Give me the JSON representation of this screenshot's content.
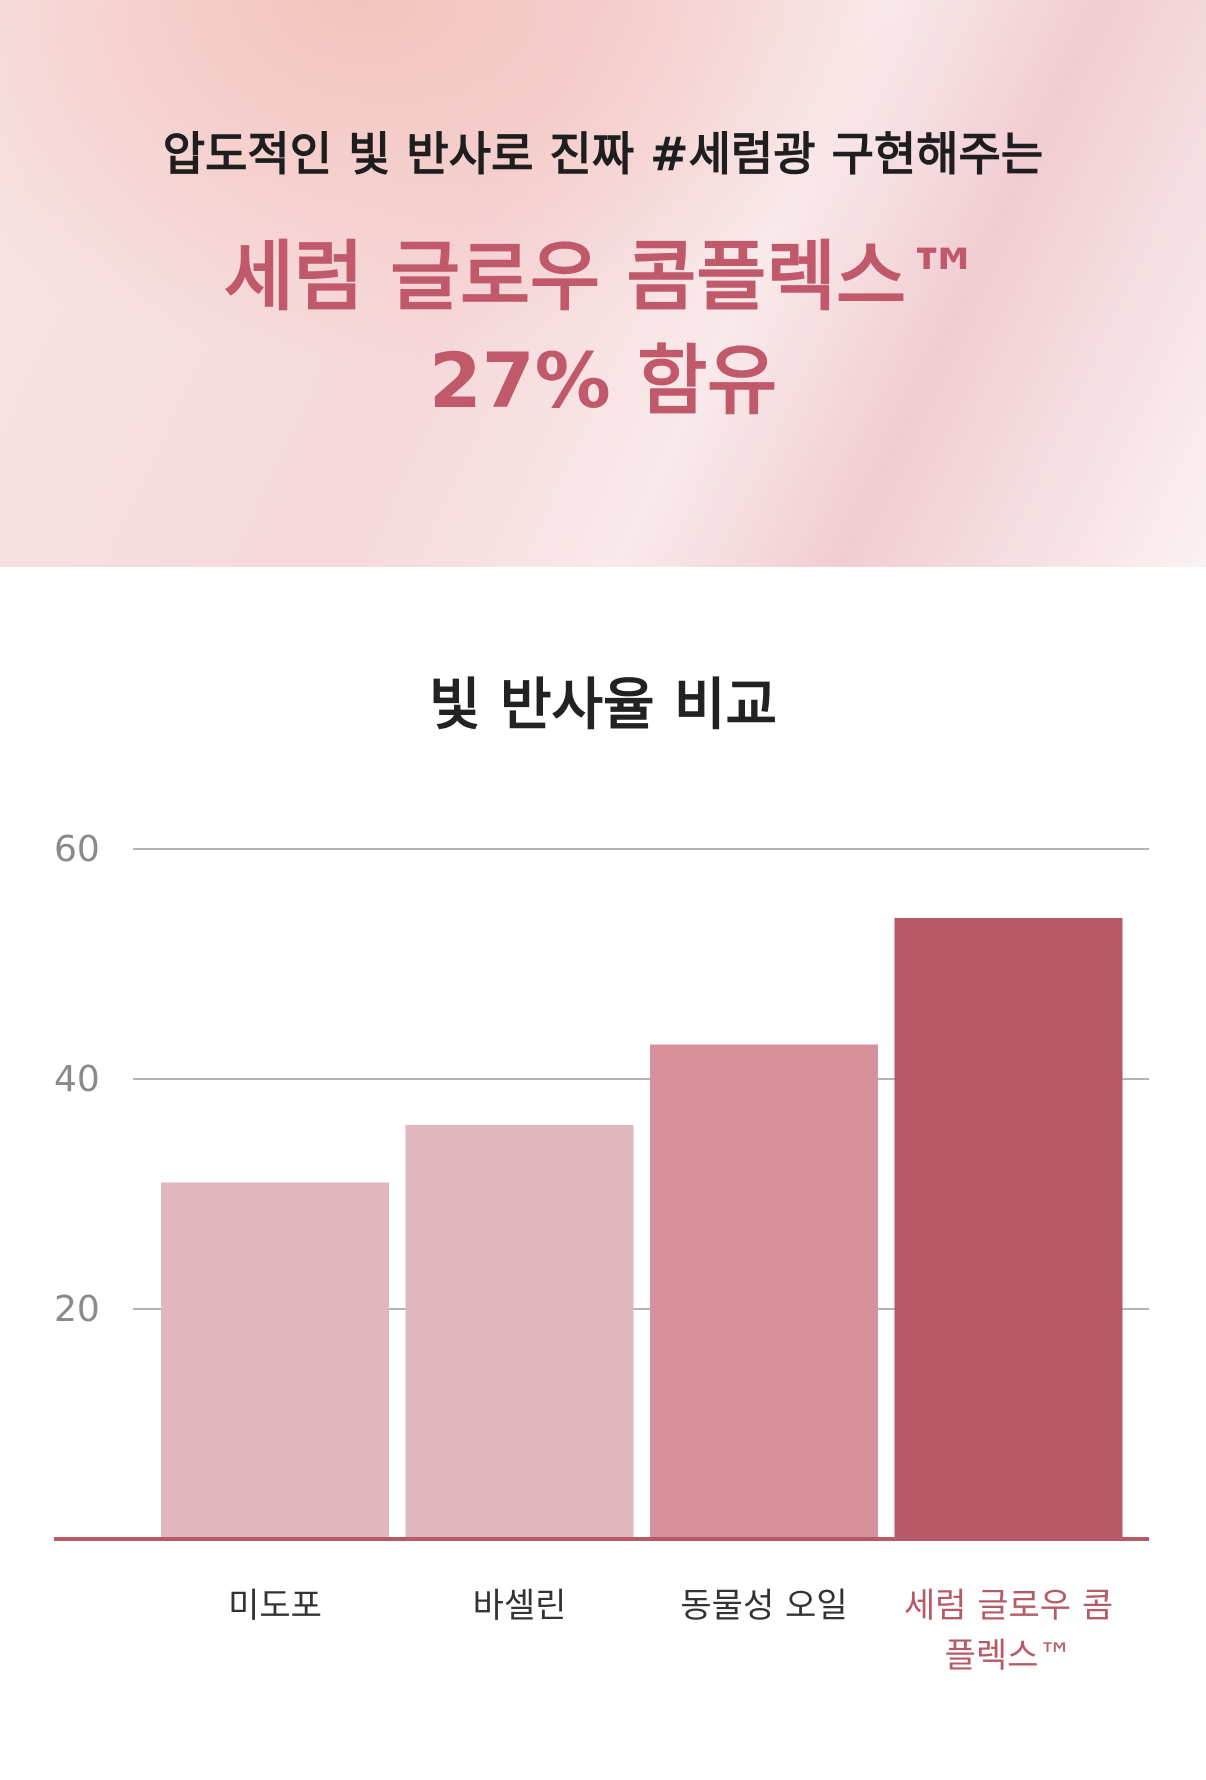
{
  "header": {
    "tagline": "압도적인 빛 반사로 진짜 #세럼광 구현해주는",
    "title": [
      "세럼 글로우 콤플렉스™",
      "27% 함유"
    ]
  },
  "chart_data": {
    "type": "bar",
    "title": "빛 반사율 비교",
    "categories": [
      "미도포",
      "바셀린",
      "동물성 오일",
      "세럼 글로우 콤플렉스™"
    ],
    "values": [
      31,
      36,
      43,
      54
    ],
    "colors": [
      "#e0b7bd",
      "#e0b7bd",
      "#d8909a",
      "#b85a66"
    ],
    "label_colors": [
      "#333333",
      "#333333",
      "#333333",
      "#b85a66"
    ],
    "ylim": [
      0,
      60
    ],
    "yticks": [
      20,
      40,
      60
    ],
    "grid": true
  }
}
